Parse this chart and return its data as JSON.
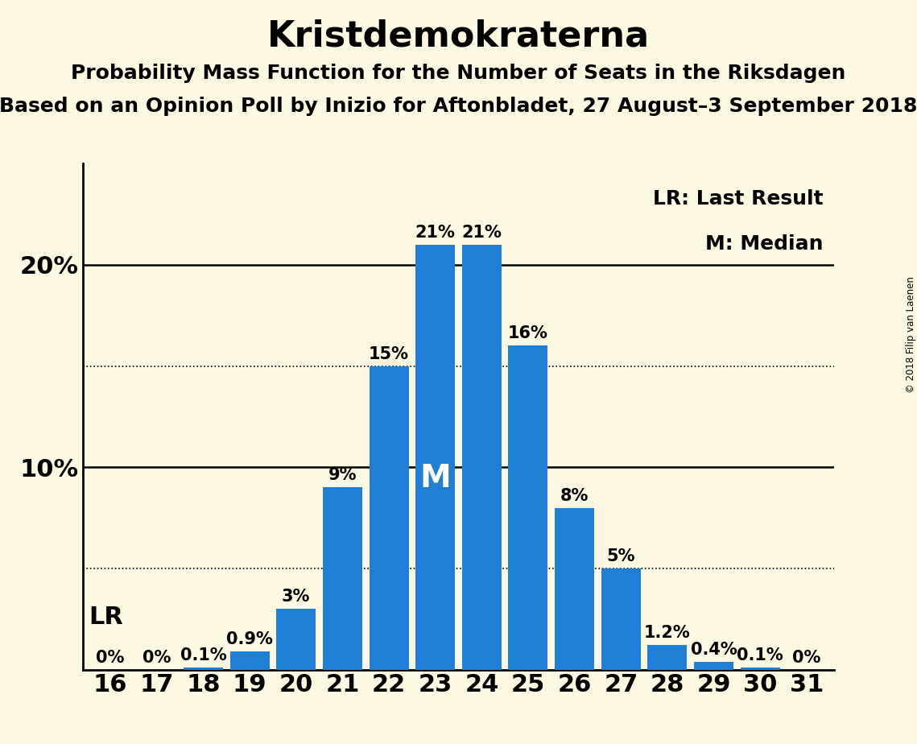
{
  "title": "Kristdemokraterna",
  "subtitle1": "Probability Mass Function for the Number of Seats in the Riksdagen",
  "subtitle2": "Based on an Opinion Poll by Inizio for Aftonbladet, 27 August–3 September 2018",
  "watermark": "© 2018 Filip van Laenen",
  "legend_lr": "LR: Last Result",
  "legend_m": "M: Median",
  "categories": [
    16,
    17,
    18,
    19,
    20,
    21,
    22,
    23,
    24,
    25,
    26,
    27,
    28,
    29,
    30,
    31
  ],
  "values": [
    0.0,
    0.0,
    0.1,
    0.9,
    3.0,
    9.0,
    15.0,
    21.0,
    21.0,
    16.0,
    8.0,
    5.0,
    1.2,
    0.4,
    0.1,
    0.0
  ],
  "bar_labels": [
    "0%",
    "0%",
    "0.1%",
    "0.9%",
    "3%",
    "9%",
    "15%",
    "21%",
    "21%",
    "16%",
    "8%",
    "5%",
    "1.2%",
    "0.4%",
    "0.1%",
    "0%"
  ],
  "bar_color": "#1e7fd4",
  "background_color": "#fdf8e1",
  "lr_seat": 16,
  "median_seat": 23,
  "dotted_lines": [
    5.0,
    15.0
  ],
  "ylim": [
    0,
    25
  ],
  "title_fontsize": 32,
  "subtitle_fontsize": 18,
  "tick_fontsize": 22,
  "bar_label_fontsize": 15,
  "legend_fontsize": 18,
  "m_fontsize": 28,
  "lr_fontsize": 22
}
